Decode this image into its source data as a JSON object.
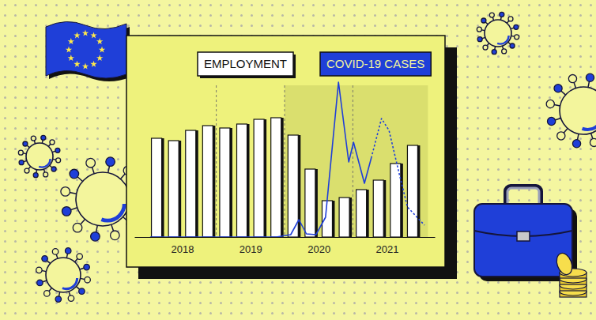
{
  "chart_data": {
    "type": "bar",
    "legend": "top",
    "grid": true,
    "tick_labels": "x",
    "xlim": [
      2017.8,
      2022.2
    ],
    "xticks": [
      {
        "value": 2018.5,
        "label": "2018"
      },
      {
        "value": 2019.5,
        "label": "2019"
      },
      {
        "value": 2020.5,
        "label": "2020"
      },
      {
        "value": 2021.5,
        "label": "2021"
      }
    ],
    "ylim": [
      0,
      200
    ],
    "y2lim": [
      0,
      100
    ],
    "highlight_range": [
      2020,
      2022.1
    ],
    "series": [
      {
        "name": "EMPLOYMENT",
        "type": "bar",
        "color": "#ffffff",
        "x": [
          2018.125,
          2018.375,
          2018.625,
          2018.875,
          2019.125,
          2019.375,
          2019.625,
          2019.875,
          2020.125,
          2020.375,
          2020.625,
          2020.875,
          2021.125,
          2021.375,
          2021.625,
          2021.875
        ],
        "values": [
          125,
          122,
          135,
          141,
          138,
          143,
          149,
          151,
          129,
          86,
          46,
          50,
          60,
          72,
          93,
          116
        ]
      },
      {
        "name": "COVID-19 CASES",
        "type": "line",
        "color": "#1f3fd8",
        "line_style": "solid",
        "axis": "y2",
        "x": [
          2018.03,
          2019.88,
          2020.09,
          2020.21,
          2020.32,
          2020.46,
          2020.6,
          2020.79,
          2020.94,
          2021.01,
          2021.17,
          2021.27
        ],
        "values": [
          0,
          0,
          1.5,
          11,
          2,
          1.5,
          12.5,
          98,
          47.5,
          60,
          34,
          50
        ]
      },
      {
        "type": "line",
        "color": "#1f3fd8",
        "line_style": "dotted",
        "axis": "y2",
        "x": [
          2021.27,
          2021.42,
          2021.53,
          2021.68,
          2021.8,
          2022.05
        ],
        "values": [
          50,
          75,
          67.5,
          40,
          19,
          7.5
        ]
      }
    ]
  }
}
